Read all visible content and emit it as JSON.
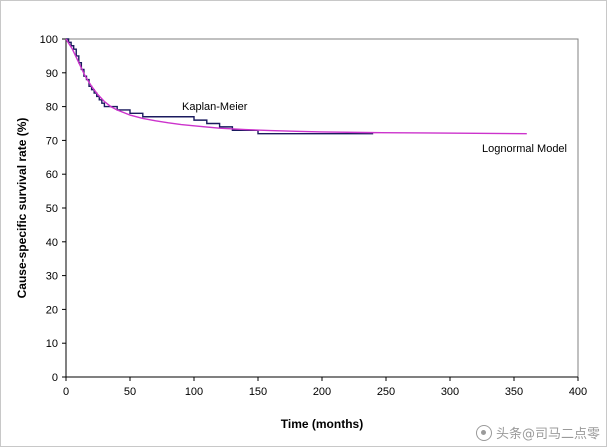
{
  "chart_data": {
    "type": "line",
    "title": "",
    "xlabel": "Time (months)",
    "ylabel": "Cause-specific survival rate (%)",
    "xlim": [
      0,
      400
    ],
    "ylim": [
      0,
      100
    ],
    "x_ticks": [
      0,
      50,
      100,
      150,
      200,
      250,
      300,
      350,
      400
    ],
    "y_ticks": [
      0,
      10,
      20,
      30,
      40,
      50,
      60,
      70,
      80,
      90,
      100
    ],
    "grid": false,
    "series": [
      {
        "name": "Kaplan-Meier",
        "color": "#1a1a5e",
        "step": true,
        "x": [
          0,
          2,
          4,
          6,
          8,
          10,
          12,
          14,
          16,
          18,
          20,
          22,
          24,
          26,
          28,
          30,
          34,
          40,
          46,
          50,
          55,
          60,
          70,
          80,
          95,
          100,
          105,
          110,
          115,
          120,
          125,
          130,
          135,
          140,
          150,
          160,
          175,
          190,
          200,
          220,
          240
        ],
        "y": [
          100,
          99,
          98,
          97,
          95,
          93,
          91,
          89,
          88,
          86,
          85,
          84,
          83,
          82,
          81,
          80,
          80,
          79,
          79,
          78,
          78,
          77,
          77,
          77,
          77,
          76,
          76,
          75,
          75,
          74,
          74,
          73,
          73,
          73,
          72,
          72,
          72,
          72,
          72,
          72,
          72
        ]
      },
      {
        "name": "Lognormal Model",
        "color": "#cc33cc",
        "step": false,
        "x": [
          0,
          5,
          10,
          15,
          20,
          25,
          30,
          35,
          40,
          50,
          60,
          70,
          80,
          90,
          100,
          120,
          140,
          160,
          180,
          200,
          240,
          280,
          320,
          360
        ],
        "y": [
          100,
          97,
          93,
          89,
          86,
          83.5,
          81.5,
          80,
          79,
          77.5,
          76.5,
          75.8,
          75.2,
          74.7,
          74.3,
          73.6,
          73.2,
          72.9,
          72.7,
          72.5,
          72.3,
          72.2,
          72.1,
          72.0
        ]
      }
    ]
  },
  "watermark": "头条@司马二点零"
}
